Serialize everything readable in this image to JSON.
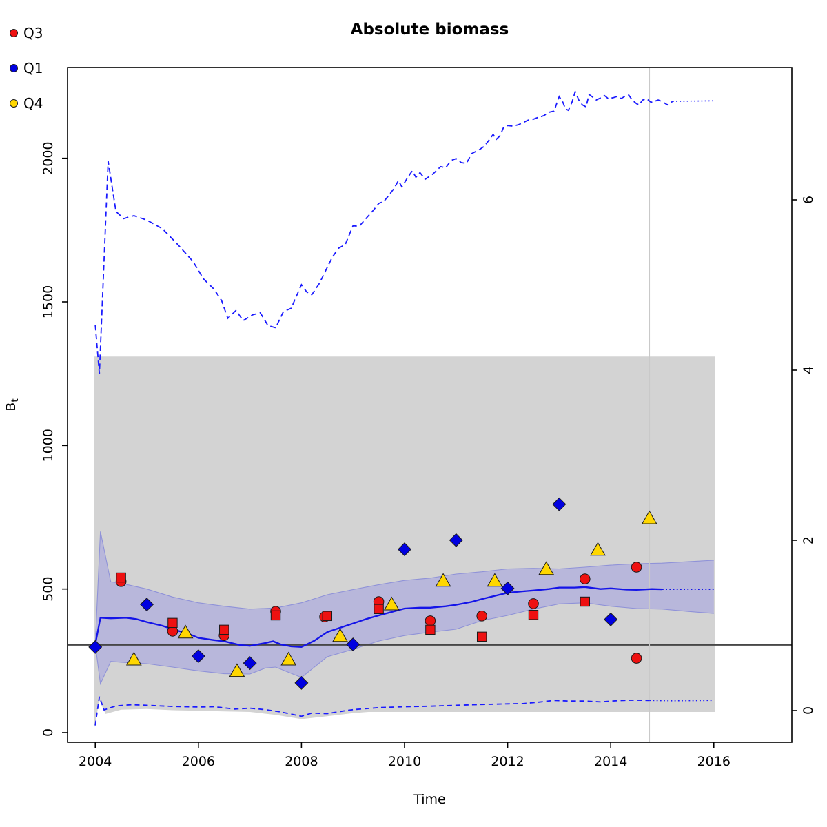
{
  "title": "Absolute biomass",
  "legend": {
    "items": [
      {
        "label": "Q3",
        "color": "#ee1111"
      },
      {
        "label": "Q1",
        "color": "#0000e0"
      },
      {
        "label": "Q4",
        "color": "#ffd700"
      }
    ]
  },
  "chart_data": {
    "type": "line",
    "title": "Absolute biomass",
    "xlabel": "Time",
    "ylabel_base": "B",
    "ylabel_subscript": "t",
    "grid": false,
    "legend_position": "top-left-outside",
    "axes": {
      "x": {
        "range": [
          2003.462,
          2017.514
        ],
        "ticks": [
          2004,
          2006,
          2008,
          2010,
          2012,
          2014,
          2016
        ]
      },
      "y_left": {
        "range": [
          -33.6,
          2316
        ],
        "ticks": [
          0,
          500,
          1000,
          1500,
          2000
        ]
      },
      "y_right": {
        "range": [
          -0.3725,
          7.5547
        ],
        "ticks": [
          0,
          2,
          4,
          6
        ]
      }
    },
    "colors": {
      "blue_line": "#1414e8",
      "dashed_line": "#1a1aff",
      "band_fill": "#b8b7db",
      "band_edge": "#8f92d8",
      "gray_region": "#d3d3d3",
      "reference_line": "#474747",
      "vertical_line": "#c9c9c9",
      "q3": "#ee1111",
      "q1": "#0000e0",
      "q4": "#ffd700"
    },
    "reference_lines": {
      "horizontal_value": 305,
      "vertical_year": 2014.75
    },
    "gray_region": {
      "x_start": 2003.98,
      "x_end": 2016.02,
      "top": 1310,
      "bottom": [
        [
          2003.98,
          15
        ],
        [
          2004.08,
          112
        ],
        [
          2004.2,
          65
        ],
        [
          2004.5,
          80
        ],
        [
          2005,
          82
        ],
        [
          2005.5,
          78
        ],
        [
          2006,
          76
        ],
        [
          2006.5,
          74
        ],
        [
          2007,
          72
        ],
        [
          2007.5,
          62
        ],
        [
          2008,
          47
        ],
        [
          2008.5,
          57
        ],
        [
          2009,
          68
        ],
        [
          2009.3,
          72
        ],
        [
          2016.02,
          72
        ]
      ]
    },
    "confidence_band": {
      "upper": [
        [
          2004,
          307
        ],
        [
          2004.1,
          700
        ],
        [
          2004.3,
          525
        ],
        [
          2004.5,
          520
        ],
        [
          2005,
          500
        ],
        [
          2005.5,
          472
        ],
        [
          2006,
          452
        ],
        [
          2006.5,
          440
        ],
        [
          2007,
          430
        ],
        [
          2007.5,
          434
        ],
        [
          2008,
          452
        ],
        [
          2008.5,
          480
        ],
        [
          2009,
          498
        ],
        [
          2009.5,
          515
        ],
        [
          2010,
          530
        ],
        [
          2010.5,
          538
        ],
        [
          2011,
          552
        ],
        [
          2011.5,
          560
        ],
        [
          2012,
          570
        ],
        [
          2012.5,
          572
        ],
        [
          2013,
          570
        ],
        [
          2013.5,
          576
        ],
        [
          2014,
          583
        ],
        [
          2014.5,
          588
        ],
        [
          2015,
          590
        ],
        [
          2015.5,
          595
        ],
        [
          2016,
          600
        ]
      ],
      "lower": [
        [
          2004,
          307
        ],
        [
          2004.1,
          170
        ],
        [
          2004.3,
          248
        ],
        [
          2004.5,
          245
        ],
        [
          2005,
          240
        ],
        [
          2005.5,
          228
        ],
        [
          2006,
          215
        ],
        [
          2006.5,
          205
        ],
        [
          2007,
          204
        ],
        [
          2007.3,
          225
        ],
        [
          2007.5,
          228
        ],
        [
          2008,
          192
        ],
        [
          2008.5,
          264
        ],
        [
          2009,
          290
        ],
        [
          2009.5,
          319
        ],
        [
          2010,
          338
        ],
        [
          2010.5,
          350
        ],
        [
          2011,
          360
        ],
        [
          2011.5,
          390
        ],
        [
          2012,
          408
        ],
        [
          2012.5,
          430
        ],
        [
          2013,
          448
        ],
        [
          2013.5,
          452
        ],
        [
          2014,
          440
        ],
        [
          2014.5,
          432
        ],
        [
          2015,
          430
        ],
        [
          2015.5,
          422
        ],
        [
          2016,
          415
        ]
      ]
    },
    "median_line": {
      "solid": [
        [
          2004,
          307
        ],
        [
          2004.1,
          400
        ],
        [
          2004.3,
          398
        ],
        [
          2004.6,
          400
        ],
        [
          2004.8,
          395
        ],
        [
          2005,
          385
        ],
        [
          2005.3,
          372
        ],
        [
          2005.5,
          360
        ],
        [
          2005.8,
          345
        ],
        [
          2006,
          330
        ],
        [
          2006.3,
          322
        ],
        [
          2006.5,
          318
        ],
        [
          2006.8,
          305
        ],
        [
          2007,
          302
        ],
        [
          2007.3,
          312
        ],
        [
          2007.45,
          318
        ],
        [
          2007.6,
          307
        ],
        [
          2007.8,
          300
        ],
        [
          2008,
          298
        ],
        [
          2008.25,
          320
        ],
        [
          2008.5,
          350
        ],
        [
          2008.75,
          365
        ],
        [
          2009,
          380
        ],
        [
          2009.25,
          395
        ],
        [
          2009.5,
          408
        ],
        [
          2009.75,
          420
        ],
        [
          2010,
          432
        ],
        [
          2010.3,
          435
        ],
        [
          2010.5,
          435
        ],
        [
          2010.8,
          440
        ],
        [
          2011,
          445
        ],
        [
          2011.3,
          455
        ],
        [
          2011.5,
          465
        ],
        [
          2011.8,
          478
        ],
        [
          2012,
          487
        ],
        [
          2012.3,
          492
        ],
        [
          2012.5,
          495
        ],
        [
          2012.8,
          500
        ],
        [
          2013,
          505
        ],
        [
          2013.3,
          505
        ],
        [
          2013.5,
          507
        ],
        [
          2013.8,
          500
        ],
        [
          2014,
          502
        ],
        [
          2014.3,
          498
        ],
        [
          2014.5,
          497
        ],
        [
          2014.8,
          500
        ],
        [
          2015,
          499
        ]
      ],
      "dotted": [
        [
          2015,
          499
        ],
        [
          2016,
          499
        ]
      ]
    },
    "upper_quantile_line": {
      "dashed": [
        [
          2004,
          1420
        ],
        [
          2004.08,
          1250
        ],
        [
          2004.25,
          1990
        ],
        [
          2004.4,
          1815
        ],
        [
          2004.55,
          1790
        ],
        [
          2004.75,
          1800
        ],
        [
          2005,
          1785
        ],
        [
          2005.3,
          1755
        ],
        [
          2005.6,
          1700
        ],
        [
          2005.9,
          1640
        ],
        [
          2006.1,
          1580
        ],
        [
          2006.3,
          1545
        ],
        [
          2006.45,
          1505
        ],
        [
          2006.57,
          1443
        ],
        [
          2006.73,
          1470
        ],
        [
          2006.87,
          1435
        ],
        [
          2007.05,
          1455
        ],
        [
          2007.2,
          1462
        ],
        [
          2007.35,
          1418
        ],
        [
          2007.5,
          1410
        ],
        [
          2007.65,
          1466
        ],
        [
          2007.8,
          1478
        ],
        [
          2008,
          1560
        ],
        [
          2008.1,
          1535
        ],
        [
          2008.2,
          1525
        ],
        [
          2008.35,
          1565
        ],
        [
          2008.5,
          1620
        ],
        [
          2008.6,
          1656
        ],
        [
          2008.72,
          1687
        ],
        [
          2008.85,
          1700
        ],
        [
          2009,
          1765
        ],
        [
          2009.12,
          1763
        ],
        [
          2009.25,
          1790
        ],
        [
          2009.4,
          1820
        ],
        [
          2009.5,
          1843
        ],
        [
          2009.6,
          1850
        ],
        [
          2009.7,
          1872
        ],
        [
          2009.8,
          1896
        ],
        [
          2009.88,
          1922
        ],
        [
          2009.95,
          1900
        ],
        [
          2010.05,
          1930
        ],
        [
          2010.15,
          1956
        ],
        [
          2010.22,
          1934
        ],
        [
          2010.3,
          1950
        ],
        [
          2010.4,
          1927
        ],
        [
          2010.55,
          1945
        ],
        [
          2010.7,
          1971
        ],
        [
          2010.8,
          1967
        ],
        [
          2010.9,
          1992
        ],
        [
          2011,
          1999
        ],
        [
          2011.1,
          1985
        ],
        [
          2011.2,
          1982
        ],
        [
          2011.3,
          2016
        ],
        [
          2011.45,
          2030
        ],
        [
          2011.55,
          2042
        ],
        [
          2011.65,
          2066
        ],
        [
          2011.72,
          2083
        ],
        [
          2011.78,
          2066
        ],
        [
          2011.85,
          2078
        ],
        [
          2011.92,
          2107
        ],
        [
          2012,
          2114
        ],
        [
          2012.1,
          2112
        ],
        [
          2012.2,
          2116
        ],
        [
          2012.3,
          2124
        ],
        [
          2012.4,
          2133
        ],
        [
          2012.5,
          2136
        ],
        [
          2012.6,
          2143
        ],
        [
          2012.7,
          2148
        ],
        [
          2012.8,
          2160
        ],
        [
          2012.9,
          2164
        ],
        [
          2013,
          2215
        ],
        [
          2013.07,
          2196
        ],
        [
          2013.12,
          2172
        ],
        [
          2013.18,
          2167
        ],
        [
          2013.25,
          2196
        ],
        [
          2013.31,
          2232
        ],
        [
          2013.38,
          2203
        ],
        [
          2013.45,
          2186
        ],
        [
          2013.52,
          2179
        ],
        [
          2013.58,
          2222
        ],
        [
          2013.65,
          2213
        ],
        [
          2013.72,
          2203
        ],
        [
          2013.8,
          2210
        ],
        [
          2013.88,
          2218
        ],
        [
          2013.95,
          2208
        ],
        [
          2014.05,
          2211
        ],
        [
          2014.12,
          2215
        ],
        [
          2014.2,
          2208
        ],
        [
          2014.28,
          2216
        ],
        [
          2014.35,
          2220
        ],
        [
          2014.42,
          2202
        ],
        [
          2014.5,
          2190
        ],
        [
          2014.55,
          2186
        ],
        [
          2014.62,
          2203
        ],
        [
          2014.7,
          2207
        ],
        [
          2014.78,
          2195
        ],
        [
          2014.85,
          2198
        ],
        [
          2014.92,
          2203
        ],
        [
          2015,
          2197
        ],
        [
          2015.1,
          2186
        ],
        [
          2015.2,
          2198
        ]
      ],
      "dotted": [
        [
          2015.2,
          2198
        ],
        [
          2015.5,
          2199
        ],
        [
          2016,
          2200
        ]
      ]
    },
    "lower_quantile_line": {
      "dashed": [
        [
          2004,
          25
        ],
        [
          2004.08,
          125
        ],
        [
          2004.17,
          79
        ],
        [
          2004.4,
          93
        ],
        [
          2004.7,
          97
        ],
        [
          2005,
          95
        ],
        [
          2005.5,
          91
        ],
        [
          2006,
          89
        ],
        [
          2006.3,
          90
        ],
        [
          2006.7,
          82
        ],
        [
          2007,
          85
        ],
        [
          2007.3,
          80
        ],
        [
          2007.6,
          72
        ],
        [
          2008,
          57
        ],
        [
          2008.2,
          68
        ],
        [
          2008.5,
          66
        ],
        [
          2008.8,
          75
        ],
        [
          2009,
          80
        ],
        [
          2009.5,
          87
        ],
        [
          2010,
          90
        ],
        [
          2010.5,
          92
        ],
        [
          2011,
          95
        ],
        [
          2011.5,
          98
        ],
        [
          2012,
          100
        ],
        [
          2012.3,
          101
        ],
        [
          2012.6,
          106
        ],
        [
          2012.9,
          112
        ],
        [
          2013.2,
          110
        ],
        [
          2013.5,
          110
        ],
        [
          2013.8,
          107
        ],
        [
          2014.1,
          111
        ],
        [
          2014.4,
          113
        ],
        [
          2014.75,
          112
        ]
      ],
      "dotted": [
        [
          2014.75,
          112
        ],
        [
          2015.2,
          111
        ],
        [
          2016,
          112
        ]
      ]
    },
    "series": [
      {
        "name": "Q3",
        "marker": "circle",
        "color": "#ee1111",
        "points": [
          [
            2004.5,
            526
          ],
          [
            2005.5,
            353
          ],
          [
            2006.5,
            338
          ],
          [
            2007.5,
            422
          ],
          [
            2008.45,
            403
          ],
          [
            2009.5,
            456
          ],
          [
            2010.5,
            389
          ],
          [
            2011.5,
            406
          ],
          [
            2012.5,
            449
          ],
          [
            2013.5,
            535
          ],
          [
            2014.5,
            576
          ],
          [
            2014.5,
            259
          ]
        ]
      },
      {
        "name": "Q1",
        "marker": "diamond",
        "color": "#0000e0",
        "points": [
          [
            2004,
            298
          ],
          [
            2005,
            446
          ],
          [
            2006,
            266
          ],
          [
            2007,
            242
          ],
          [
            2008,
            173
          ],
          [
            2009,
            307
          ],
          [
            2010,
            638
          ],
          [
            2011,
            670
          ],
          [
            2012,
            502
          ],
          [
            2013,
            795
          ],
          [
            2014,
            394
          ]
        ]
      },
      {
        "name": "Q4",
        "marker": "triangle",
        "color": "#ffd700",
        "points": [
          [
            2004.75,
            254
          ],
          [
            2005.75,
            348
          ],
          [
            2006.75,
            214
          ],
          [
            2007.75,
            254
          ],
          [
            2008.75,
            336
          ],
          [
            2009.75,
            446
          ],
          [
            2010.75,
            528
          ],
          [
            2011.75,
            528
          ],
          [
            2012.75,
            569
          ],
          [
            2013.75,
            636
          ],
          [
            2014.75,
            746
          ]
        ]
      },
      {
        "name": "red_squares",
        "marker": "square",
        "color": "#ee1111",
        "points": [
          [
            2004.5,
            540
          ],
          [
            2005.5,
            382
          ],
          [
            2006.5,
            358
          ],
          [
            2007.5,
            408
          ],
          [
            2008.5,
            406
          ],
          [
            2009.5,
            430
          ],
          [
            2010.5,
            358
          ],
          [
            2011.5,
            334
          ],
          [
            2012.5,
            410
          ],
          [
            2013.5,
            456
          ]
        ]
      }
    ]
  }
}
